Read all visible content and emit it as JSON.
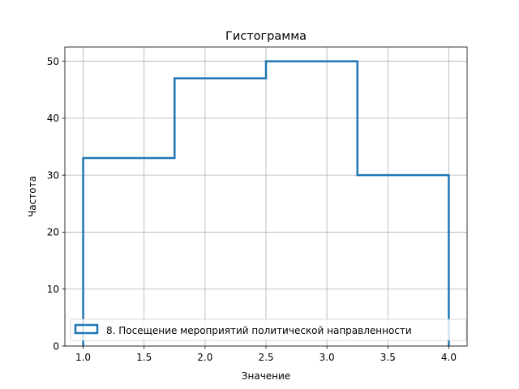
{
  "chart_data": {
    "type": "histogram",
    "title": "Гистограмма",
    "xlabel": "Значение",
    "ylabel": "Частота",
    "bin_edges": [
      1.0,
      1.75,
      2.5,
      3.25,
      4.0
    ],
    "series": [
      {
        "name": "8. Посещение мероприятий политической направленности",
        "values": [
          33,
          47,
          50,
          30
        ],
        "color": "#1f77b4",
        "histtype": "step"
      }
    ],
    "xticks": [
      1.0,
      1.5,
      2.0,
      2.5,
      3.0,
      3.5,
      4.0
    ],
    "xtick_labels": [
      "1.0",
      "1.5",
      "2.0",
      "2.5",
      "3.0",
      "3.5",
      "4.0"
    ],
    "yticks": [
      0,
      10,
      20,
      30,
      40,
      50
    ],
    "ytick_labels": [
      "0",
      "10",
      "20",
      "30",
      "40",
      "50"
    ],
    "xlim": [
      0.85,
      4.15
    ],
    "ylim": [
      0,
      52.5
    ],
    "grid": true,
    "legend_position": "lower-center"
  }
}
